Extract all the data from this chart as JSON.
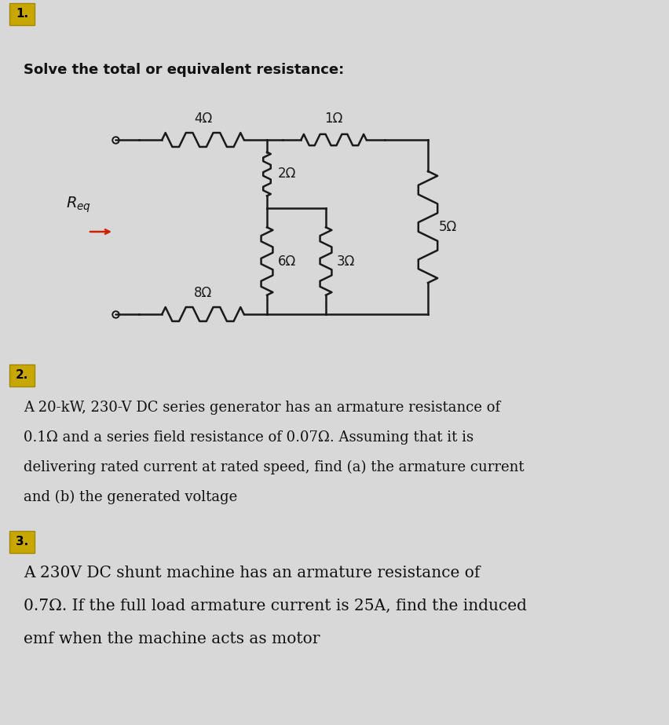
{
  "bg_color": "#d8d8d8",
  "subtitle1": "Solve the total or equivalent resistance:",
  "problem2_lines": [
    "A 20-kW, 230-V DC series generator has an armature resistance of",
    "0.1Ω and a series field resistance of 0.07Ω. Assuming that it is",
    "delivering rated current at rated speed, find (a) the armature current",
    "and (b) the generated voltage"
  ],
  "problem3_lines": [
    "A 230V DC shunt machine has an armature resistance of",
    "0.7Ω. If the full load armature current is 25A, find the induced",
    "emf when the machine acts as motor"
  ],
  "resistors": {
    "R4": "4Ω",
    "R1": "1Ω",
    "R2": "2Ω",
    "R5": "5Ω",
    "R6": "6Ω",
    "R3": "3Ω",
    "R8": "8Ω"
  },
  "wire_color": "#1a1a1a",
  "num_box_color": "#c8a800",
  "num_box_edge": "#a08800",
  "text_color": "#111111",
  "arrow_color": "#cc2200",
  "req_color": "#111111"
}
